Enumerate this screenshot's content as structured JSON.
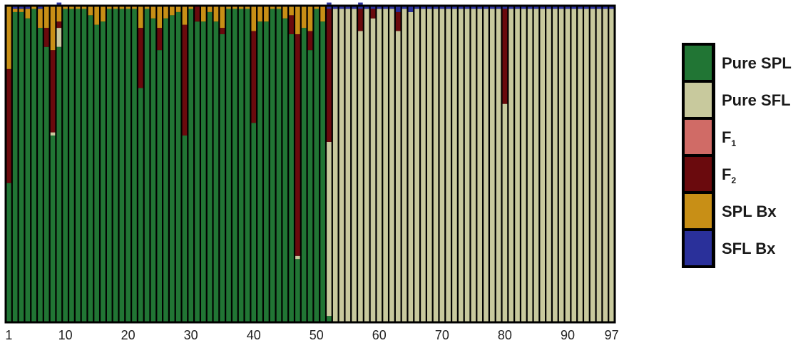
{
  "chart_data": {
    "type": "bar",
    "stacked": true,
    "normalized": true,
    "title": "",
    "xlabel": "",
    "ylabel": "",
    "ylim": [
      0,
      1
    ],
    "x_ticks": [
      "1",
      "10",
      "20",
      "30",
      "40",
      "50",
      "60",
      "70",
      "80",
      "90",
      "97"
    ],
    "categories": [
      "1",
      "2",
      "3",
      "4",
      "5",
      "6",
      "7",
      "8",
      "9",
      "10",
      "11",
      "12",
      "13",
      "14",
      "15",
      "16",
      "17",
      "18",
      "19",
      "20",
      "21",
      "22",
      "23",
      "24",
      "25",
      "26",
      "27",
      "28",
      "29",
      "30",
      "31",
      "32",
      "33",
      "34",
      "35",
      "36",
      "37",
      "38",
      "39",
      "40",
      "41",
      "42",
      "43",
      "44",
      "45",
      "46",
      "47",
      "48",
      "49",
      "50",
      "51",
      "52",
      "53",
      "54",
      "55",
      "56",
      "57",
      "58",
      "59",
      "60",
      "61",
      "62",
      "63",
      "64",
      "65",
      "66",
      "67",
      "68",
      "69",
      "70",
      "71",
      "72",
      "73",
      "74",
      "75",
      "76",
      "77",
      "78",
      "79",
      "80",
      "81",
      "82",
      "83",
      "84",
      "85",
      "86",
      "87",
      "88",
      "89",
      "90",
      "91",
      "92",
      "93",
      "94",
      "95",
      "96",
      "97"
    ],
    "series": [
      {
        "name": "Pure SPL",
        "color": "#217534",
        "values": [
          0.44,
          0.98,
          0.98,
          0.96,
          0.99,
          0.93,
          0.87,
          0.59,
          0.87,
          0.99,
          0.99,
          0.99,
          0.99,
          0.97,
          0.94,
          0.95,
          0.99,
          0.99,
          0.99,
          0.99,
          0.99,
          0.74,
          0.99,
          0.96,
          0.86,
          0.96,
          0.97,
          0.98,
          0.59,
          0.99,
          0.95,
          0.95,
          0.98,
          0.95,
          0.91,
          0.99,
          0.99,
          0.99,
          0.99,
          0.63,
          0.95,
          0.95,
          0.99,
          0.99,
          0.96,
          0.91,
          0.2,
          0.93,
          0.86,
          0.99,
          0.95,
          0.02,
          0,
          0,
          0,
          0,
          0,
          0,
          0,
          0,
          0,
          0,
          0,
          0,
          0,
          0,
          0,
          0,
          0,
          0,
          0,
          0,
          0,
          0,
          0,
          0,
          0,
          0,
          0,
          0,
          0,
          0,
          0,
          0,
          0,
          0,
          0,
          0,
          0,
          0,
          0,
          0,
          0,
          0,
          0,
          0,
          0
        ]
      },
      {
        "name": "Pure SFL",
        "color": "#c8c99d",
        "values": [
          0,
          0,
          0,
          0,
          0,
          0,
          0,
          0.01,
          0.06,
          0,
          0,
          0,
          0,
          0,
          0,
          0,
          0,
          0,
          0,
          0,
          0,
          0,
          0,
          0,
          0,
          0,
          0,
          0,
          0,
          0,
          0,
          0,
          0,
          0,
          0,
          0,
          0,
          0,
          0,
          0,
          0,
          0,
          0,
          0,
          0,
          0,
          0.01,
          0,
          0,
          0,
          0,
          0.55,
          0.99,
          0.99,
          0.99,
          0.99,
          0.92,
          0.99,
          0.96,
          0.99,
          0.99,
          0.99,
          0.92,
          0.99,
          0.98,
          0.99,
          0.99,
          0.99,
          0.99,
          0.99,
          0.99,
          0.99,
          0.99,
          0.99,
          0.99,
          0.99,
          0.99,
          0.99,
          0.99,
          0.69,
          0.99,
          0.99,
          0.99,
          0.99,
          0.99,
          0.99,
          0.99,
          0.99,
          0.99,
          0.99,
          0.99,
          0.99,
          0.99,
          0.99,
          0.99,
          0.99,
          0.99
        ]
      },
      {
        "name": "F1",
        "color": "#d06b66",
        "values": [
          0,
          0,
          0,
          0,
          0,
          0,
          0,
          0,
          0,
          0,
          0,
          0,
          0,
          0,
          0,
          0,
          0,
          0,
          0,
          0,
          0,
          0,
          0,
          0,
          0,
          0,
          0,
          0,
          0,
          0,
          0,
          0,
          0,
          0,
          0,
          0,
          0,
          0,
          0,
          0,
          0,
          0,
          0,
          0,
          0,
          0,
          0,
          0,
          0,
          0,
          0,
          0,
          0,
          0,
          0,
          0,
          0,
          0,
          0,
          0,
          0,
          0,
          0,
          0,
          0,
          0,
          0,
          0,
          0,
          0,
          0,
          0,
          0,
          0,
          0,
          0,
          0,
          0,
          0,
          0,
          0,
          0,
          0,
          0,
          0,
          0,
          0,
          0,
          0,
          0,
          0,
          0,
          0,
          0,
          0,
          0,
          0
        ]
      },
      {
        "name": "F2",
        "color": "#6a0a0d",
        "values": [
          0.36,
          0,
          0,
          0,
          0,
          0,
          0.06,
          0.26,
          0.02,
          0,
          0,
          0,
          0,
          0,
          0,
          0,
          0,
          0,
          0,
          0,
          0,
          0.19,
          0,
          0,
          0.07,
          0,
          0,
          0,
          0.35,
          0,
          0.05,
          0,
          0,
          0,
          0.02,
          0,
          0,
          0,
          0,
          0.29,
          0,
          0,
          0,
          0,
          0,
          0.06,
          0.7,
          0,
          0.06,
          0,
          0,
          0.42,
          0,
          0,
          0,
          0,
          0.07,
          0,
          0.03,
          0,
          0,
          0,
          0.06,
          0,
          0,
          0,
          0,
          0,
          0,
          0,
          0,
          0,
          0,
          0,
          0,
          0,
          0,
          0,
          0,
          0.3,
          0,
          0,
          0,
          0,
          0,
          0,
          0,
          0,
          0,
          0,
          0,
          0,
          0,
          0,
          0,
          0,
          0
        ]
      },
      {
        "name": "SPL Bx",
        "color": "#c88f16",
        "values": [
          0.2,
          0.01,
          0.01,
          0.03,
          0.01,
          0.06,
          0.07,
          0.14,
          0.05,
          0.01,
          0.01,
          0.01,
          0.01,
          0.03,
          0.06,
          0.05,
          0.01,
          0.01,
          0.01,
          0.01,
          0.01,
          0.07,
          0.01,
          0.04,
          0.07,
          0.04,
          0.03,
          0.02,
          0.06,
          0.01,
          0.0,
          0.05,
          0.02,
          0.05,
          0.07,
          0.01,
          0.01,
          0.01,
          0.01,
          0.08,
          0.05,
          0.05,
          0.01,
          0.01,
          0.04,
          0.03,
          0.09,
          0.07,
          0.08,
          0.01,
          0.05,
          0.0,
          0,
          0,
          0,
          0,
          0,
          0,
          0,
          0,
          0,
          0,
          0,
          0,
          0,
          0,
          0,
          0,
          0,
          0,
          0,
          0,
          0,
          0,
          0,
          0,
          0,
          0,
          0,
          0,
          0,
          0,
          0,
          0,
          0,
          0,
          0,
          0,
          0,
          0,
          0,
          0,
          0,
          0,
          0,
          0,
          0
        ]
      },
      {
        "name": "SFL Bx",
        "color": "#2a309a",
        "values": [
          0,
          0,
          0,
          0,
          0,
          0,
          0,
          0,
          0.01,
          0,
          0,
          0,
          0,
          0,
          0,
          0,
          0,
          0,
          0,
          0,
          0,
          0,
          0,
          0,
          0,
          0,
          0,
          0,
          0,
          0,
          0,
          0,
          0,
          0,
          0,
          0,
          0,
          0,
          0,
          0,
          0,
          0,
          0,
          0,
          0,
          0,
          0,
          0,
          0,
          0,
          0,
          0.02,
          0.01,
          0.01,
          0.01,
          0.01,
          0.02,
          0.01,
          0.01,
          0.01,
          0.01,
          0.01,
          0.02,
          0.01,
          0.02,
          0.01,
          0.01,
          0.01,
          0.01,
          0.01,
          0.01,
          0.01,
          0.01,
          0.01,
          0.01,
          0.01,
          0.01,
          0.01,
          0.01,
          0.01,
          0.01,
          0.01,
          0.01,
          0.01,
          0.01,
          0.01,
          0.01,
          0.01,
          0.01,
          0.01,
          0.01,
          0.01,
          0.01,
          0.01,
          0.01,
          0.01,
          0.01
        ]
      }
    ],
    "legend": {
      "position": "right",
      "entries": [
        {
          "label": "Pure SPL",
          "sub": "",
          "color": "#217534"
        },
        {
          "label": "Pure SFL",
          "sub": "",
          "color": "#c8c99d"
        },
        {
          "label": "F",
          "sub": "1",
          "color": "#d06b66"
        },
        {
          "label": "F",
          "sub": "2",
          "color": "#6a0a0d"
        },
        {
          "label": "SPL Bx",
          "sub": "",
          "color": "#c88f16"
        },
        {
          "label": "SFL Bx",
          "sub": "",
          "color": "#2a309a"
        }
      ]
    },
    "grid": false
  }
}
